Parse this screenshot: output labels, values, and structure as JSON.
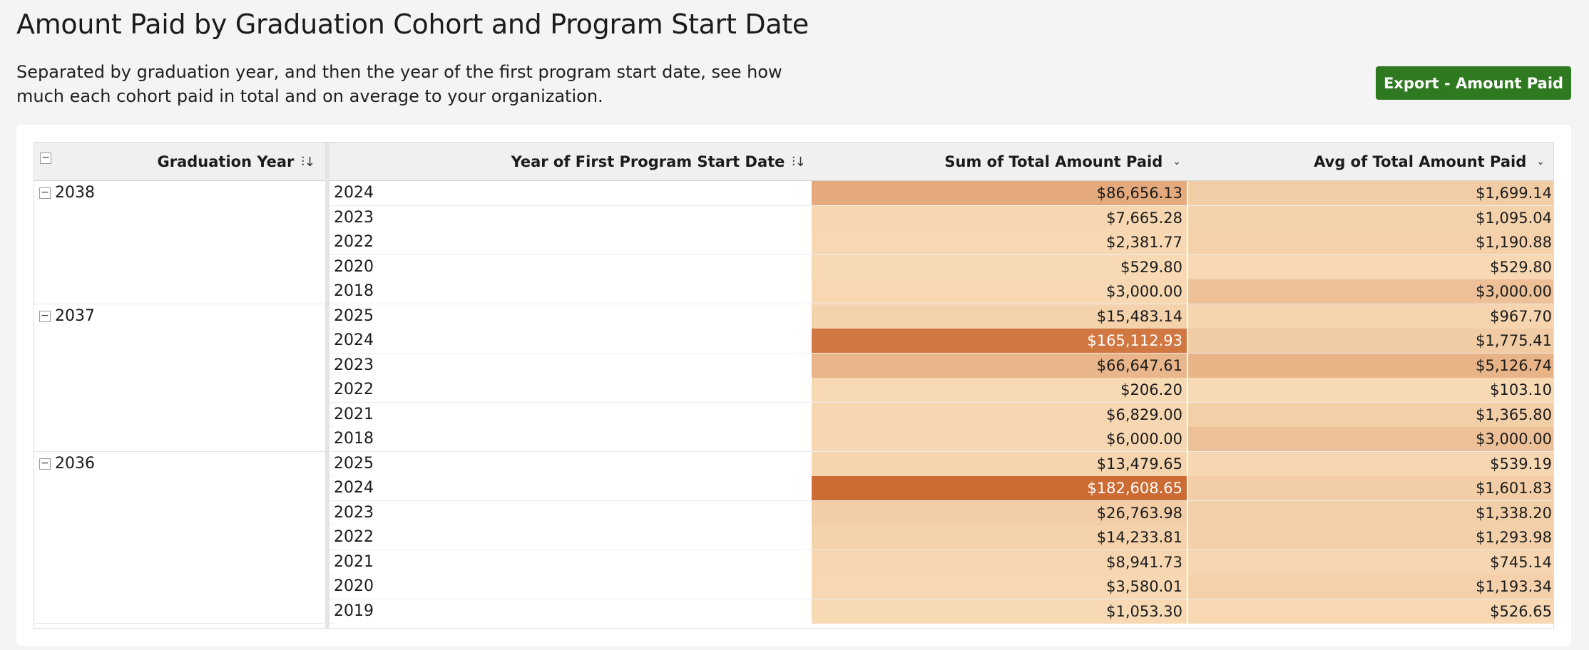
{
  "page": {
    "title": "Amount Paid by Graduation Cohort and Program Start Date",
    "description": "Separated by graduation year, and then the year of the first program start date, see how much each cohort paid in total and on average to your organization.",
    "export_label": "Export - Amount Paid"
  },
  "colors": {
    "accent_button": "#2f7a20",
    "heat_low": "#f7d9b4",
    "heat_high": "#cc6b34"
  },
  "table": {
    "collapse_all_symbol": "−",
    "columns": [
      {
        "label": "Graduation Year",
        "icon": "sort-icon"
      },
      {
        "label": "Year of First Program Start Date",
        "icon": "sort-icon"
      },
      {
        "label": "Sum of Total Amount Paid",
        "icon": "chevron-down-icon"
      },
      {
        "label": "Avg of Total Amount Paid",
        "icon": "chevron-down-icon"
      }
    ],
    "groups": [
      {
        "year": "2038",
        "toggle_symbol": "−",
        "rows": [
          {
            "start": "2024",
            "sum": "$86,656.13",
            "avg": "$1,699.14",
            "sum_heat": 0.44,
            "avg_heat": 0.12
          },
          {
            "start": "2023",
            "sum": "$7,665.28",
            "avg": "$1,095.04",
            "sum_heat": 0.02,
            "avg_heat": 0.06
          },
          {
            "start": "2022",
            "sum": "$2,381.77",
            "avg": "$1,190.88",
            "sum_heat": 0.01,
            "avg_heat": 0.07
          },
          {
            "start": "2020",
            "sum": "$529.80",
            "avg": "$529.80",
            "sum_heat": 0.0,
            "avg_heat": 0.01
          },
          {
            "start": "2018",
            "sum": "$3,000.00",
            "avg": "$3,000.00",
            "sum_heat": 0.01,
            "avg_heat": 0.23
          }
        ]
      },
      {
        "year": "2037",
        "toggle_symbol": "−",
        "rows": [
          {
            "start": "2025",
            "sum": "$15,483.14",
            "avg": "$967.70",
            "sum_heat": 0.06,
            "avg_heat": 0.05
          },
          {
            "start": "2024",
            "sum": "$165,112.93",
            "avg": "$1,775.41",
            "sum_heat": 0.89,
            "avg_heat": 0.13
          },
          {
            "start": "2023",
            "sum": "$66,647.61",
            "avg": "$5,126.74",
            "sum_heat": 0.32,
            "avg_heat": 0.35
          },
          {
            "start": "2022",
            "sum": "$206.20",
            "avg": "$103.10",
            "sum_heat": 0.0,
            "avg_heat": 0.0
          },
          {
            "start": "2021",
            "sum": "$6,829.00",
            "avg": "$1,365.80",
            "sum_heat": 0.02,
            "avg_heat": 0.09
          },
          {
            "start": "2018",
            "sum": "$6,000.00",
            "avg": "$3,000.00",
            "sum_heat": 0.02,
            "avg_heat": 0.23
          }
        ]
      },
      {
        "year": "2036",
        "toggle_symbol": "−",
        "rows": [
          {
            "start": "2025",
            "sum": "$13,479.65",
            "avg": "$539.19",
            "sum_heat": 0.05,
            "avg_heat": 0.02
          },
          {
            "start": "2024",
            "sum": "$182,608.65",
            "avg": "$1,601.83",
            "sum_heat": 1.0,
            "avg_heat": 0.11
          },
          {
            "start": "2023",
            "sum": "$26,763.98",
            "avg": "$1,338.20",
            "sum_heat": 0.11,
            "avg_heat": 0.09
          },
          {
            "start": "2022",
            "sum": "$14,233.81",
            "avg": "$1,293.98",
            "sum_heat": 0.06,
            "avg_heat": 0.08
          },
          {
            "start": "2021",
            "sum": "$8,941.73",
            "avg": "$745.14",
            "sum_heat": 0.03,
            "avg_heat": 0.03
          },
          {
            "start": "2020",
            "sum": "$3,580.01",
            "avg": "$1,193.34",
            "sum_heat": 0.01,
            "avg_heat": 0.07
          },
          {
            "start": "2019",
            "sum": "$1,053.30",
            "avg": "$526.65",
            "sum_heat": 0.0,
            "avg_heat": 0.01
          }
        ]
      }
    ]
  }
}
